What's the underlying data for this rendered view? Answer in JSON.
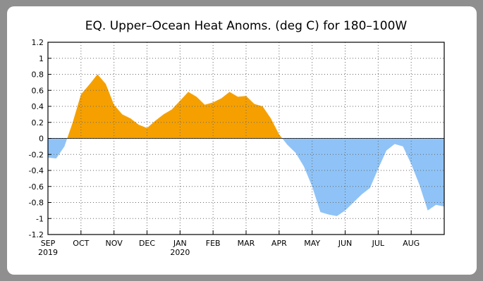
{
  "chart_data": {
    "type": "area",
    "title": "EQ. Upper–Ocean Heat Anoms. (deg C) for 180–100W",
    "categories": [
      "SEP",
      null,
      null,
      null,
      "OCT",
      null,
      null,
      null,
      "NOV",
      null,
      null,
      null,
      "DEC",
      null,
      null,
      null,
      "JAN",
      null,
      null,
      null,
      "FEB",
      null,
      null,
      null,
      "MAR",
      null,
      null,
      null,
      "APR",
      null,
      null,
      null,
      "MAY",
      null,
      null,
      null,
      "JUN",
      null,
      null,
      null,
      "JUL",
      null,
      null,
      null,
      "AUG",
      null,
      null,
      null,
      null
    ],
    "year_labels": [
      "2019",
      null,
      null,
      null,
      null,
      null,
      null,
      null,
      null,
      null,
      null,
      null,
      null,
      null,
      null,
      null,
      "2020",
      null,
      null,
      null,
      null,
      null,
      null,
      null,
      null,
      null,
      null,
      null,
      null,
      null,
      null,
      null,
      null,
      null,
      null,
      null,
      null,
      null,
      null,
      null,
      null,
      null,
      null,
      null,
      null,
      null,
      null,
      null,
      null
    ],
    "values": [
      -0.24,
      -0.25,
      -0.1,
      0.2,
      0.55,
      0.67,
      0.8,
      0.68,
      0.42,
      0.3,
      0.25,
      0.17,
      0.13,
      0.22,
      0.3,
      0.36,
      0.47,
      0.58,
      0.52,
      0.42,
      0.45,
      0.5,
      0.58,
      0.52,
      0.53,
      0.43,
      0.4,
      0.25,
      0.05,
      -0.08,
      -0.18,
      -0.35,
      -0.6,
      -0.92,
      -0.95,
      -0.97,
      -0.9,
      -0.8,
      -0.7,
      -0.62,
      -0.38,
      -0.15,
      -0.07,
      -0.1,
      -0.32,
      -0.58,
      -0.9,
      -0.83,
      -0.85
    ],
    "positive_color": "#f5a000",
    "negative_color": "#8fc3f7",
    "ylim": [
      -1.2,
      1.2
    ],
    "yticks": [
      -1.2,
      -1,
      -0.8,
      -0.6,
      -0.4,
      -0.2,
      0,
      0.2,
      0.4,
      0.6,
      0.8,
      1,
      1.2
    ],
    "grid": true
  }
}
